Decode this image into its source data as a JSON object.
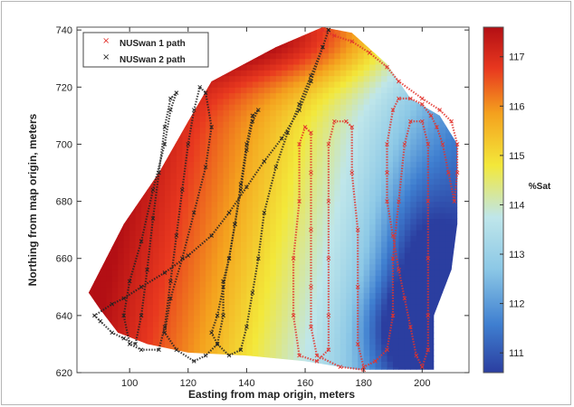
{
  "chart_data": {
    "type": "heatmap",
    "xlabel": "Easting from map origin, meters",
    "ylabel": "Northing from map origin, meters",
    "xlim": [
      82,
      216
    ],
    "ylim": [
      620,
      741
    ],
    "x_ticks": [
      100,
      120,
      140,
      160,
      180,
      200
    ],
    "y_ticks": [
      620,
      640,
      660,
      680,
      700,
      720,
      740
    ],
    "colorbar": {
      "label": "%Sat",
      "range": [
        110.6,
        117.6
      ],
      "ticks": [
        111,
        112,
        113,
        114,
        115,
        116,
        117
      ],
      "colors": [
        "#2b3ea0",
        "#3f7fd0",
        "#8cc8e6",
        "#bfe6ea",
        "#f3e83a",
        "#f4a11e",
        "#e8381f",
        "#b30f14"
      ]
    },
    "field_boundary": [
      [
        90,
        642
      ],
      [
        86,
        648
      ],
      [
        98,
        672
      ],
      [
        110,
        690
      ],
      [
        120,
        708
      ],
      [
        128,
        722
      ],
      [
        150,
        734
      ],
      [
        166,
        741
      ],
      [
        176,
        739
      ],
      [
        188,
        728
      ],
      [
        196,
        716
      ],
      [
        206,
        710
      ],
      [
        212,
        700
      ],
      [
        212,
        672
      ],
      [
        210,
        656
      ],
      [
        204,
        640
      ],
      [
        204,
        621
      ],
      [
        178,
        621
      ],
      [
        160,
        624
      ],
      [
        140,
        626
      ],
      [
        120,
        627
      ],
      [
        106,
        630
      ],
      [
        96,
        634
      ]
    ],
    "series": [
      {
        "name": "NUSwan 1 path",
        "color": "#e2322c",
        "marker": "x",
        "points": [
          [
            166,
            740
          ],
          [
            170,
            738
          ],
          [
            176,
            736
          ],
          [
            182,
            732
          ],
          [
            188,
            727
          ],
          [
            192,
            722
          ],
          [
            200,
            716
          ],
          [
            206,
            712
          ],
          [
            210,
            708
          ],
          [
            212,
            700
          ],
          [
            212,
            690
          ],
          [
            211,
            680
          ],
          [
            209,
            690
          ],
          [
            207,
            700
          ],
          [
            205,
            706
          ],
          [
            203,
            710
          ],
          [
            200,
            714
          ],
          [
            196,
            716
          ],
          [
            192,
            716
          ],
          [
            190,
            712
          ],
          [
            188,
            700
          ],
          [
            188,
            690
          ],
          [
            188,
            680
          ],
          [
            190,
            668
          ],
          [
            192,
            656
          ],
          [
            194,
            646
          ],
          [
            196,
            636
          ],
          [
            198,
            626
          ],
          [
            200,
            622
          ],
          [
            202,
            628
          ],
          [
            202,
            640
          ],
          [
            202,
            660
          ],
          [
            202,
            680
          ],
          [
            202,
            700
          ],
          [
            200,
            708
          ],
          [
            196,
            708
          ],
          [
            194,
            700
          ],
          [
            192,
            680
          ],
          [
            190,
            660
          ],
          [
            190,
            640
          ],
          [
            188,
            628
          ],
          [
            184,
            624
          ],
          [
            180,
            622
          ],
          [
            178,
            630
          ],
          [
            178,
            650
          ],
          [
            178,
            670
          ],
          [
            176,
            690
          ],
          [
            176,
            706
          ],
          [
            174,
            708
          ],
          [
            170,
            708
          ],
          [
            168,
            700
          ],
          [
            168,
            680
          ],
          [
            168,
            660
          ],
          [
            168,
            640
          ],
          [
            168,
            628
          ],
          [
            164,
            624
          ],
          [
            158,
            626
          ],
          [
            156,
            640
          ],
          [
            156,
            660
          ],
          [
            158,
            680
          ],
          [
            158,
            700
          ],
          [
            160,
            706
          ],
          [
            162,
            704
          ],
          [
            162,
            690
          ],
          [
            162,
            670
          ],
          [
            162,
            650
          ],
          [
            162,
            636
          ],
          [
            164,
            626
          ],
          [
            172,
            622
          ],
          [
            180,
            621
          ]
        ]
      },
      {
        "name": "NUSwan 2 path",
        "color": "#222222",
        "marker": "x",
        "points": [
          [
            168,
            740
          ],
          [
            166,
            734
          ],
          [
            162,
            722
          ],
          [
            158,
            712
          ],
          [
            152,
            702
          ],
          [
            146,
            694
          ],
          [
            140,
            685
          ],
          [
            134,
            676
          ],
          [
            128,
            668
          ],
          [
            120,
            661
          ],
          [
            112,
            655
          ],
          [
            104,
            650
          ],
          [
            98,
            646
          ],
          [
            94,
            644
          ],
          [
            88,
            640
          ],
          [
            90,
            638
          ],
          [
            94,
            634
          ],
          [
            98,
            632
          ],
          [
            102,
            630
          ],
          [
            104,
            640
          ],
          [
            106,
            656
          ],
          [
            108,
            674
          ],
          [
            110,
            690
          ],
          [
            112,
            706
          ],
          [
            114,
            716
          ],
          [
            116,
            718
          ],
          [
            114,
            712
          ],
          [
            112,
            700
          ],
          [
            108,
            684
          ],
          [
            104,
            666
          ],
          [
            100,
            652
          ],
          [
            98,
            640
          ],
          [
            100,
            630
          ],
          [
            104,
            628
          ],
          [
            110,
            628
          ],
          [
            112,
            636
          ],
          [
            114,
            652
          ],
          [
            116,
            668
          ],
          [
            118,
            684
          ],
          [
            120,
            700
          ],
          [
            122,
            712
          ],
          [
            124,
            720
          ],
          [
            126,
            718
          ],
          [
            128,
            706
          ],
          [
            126,
            692
          ],
          [
            122,
            676
          ],
          [
            118,
            660
          ],
          [
            114,
            646
          ],
          [
            112,
            634
          ],
          [
            116,
            628
          ],
          [
            122,
            624
          ],
          [
            126,
            626
          ],
          [
            130,
            630
          ],
          [
            132,
            640
          ],
          [
            132,
            652
          ],
          [
            134,
            660
          ],
          [
            136,
            672
          ],
          [
            138,
            684
          ],
          [
            140,
            698
          ],
          [
            142,
            708
          ],
          [
            144,
            712
          ],
          [
            142,
            710
          ],
          [
            140,
            700
          ],
          [
            138,
            686
          ],
          [
            136,
            672
          ],
          [
            134,
            660
          ],
          [
            132,
            650
          ],
          [
            130,
            640
          ],
          [
            128,
            634
          ],
          [
            130,
            630
          ],
          [
            134,
            626
          ],
          [
            138,
            628
          ],
          [
            140,
            636
          ],
          [
            142,
            648
          ],
          [
            144,
            660
          ],
          [
            146,
            676
          ],
          [
            150,
            692
          ],
          [
            154,
            704
          ],
          [
            158,
            714
          ],
          [
            162,
            724
          ],
          [
            166,
            734
          ],
          [
            168,
            740
          ]
        ]
      }
    ],
    "legend": {
      "placement": "top-left"
    }
  }
}
